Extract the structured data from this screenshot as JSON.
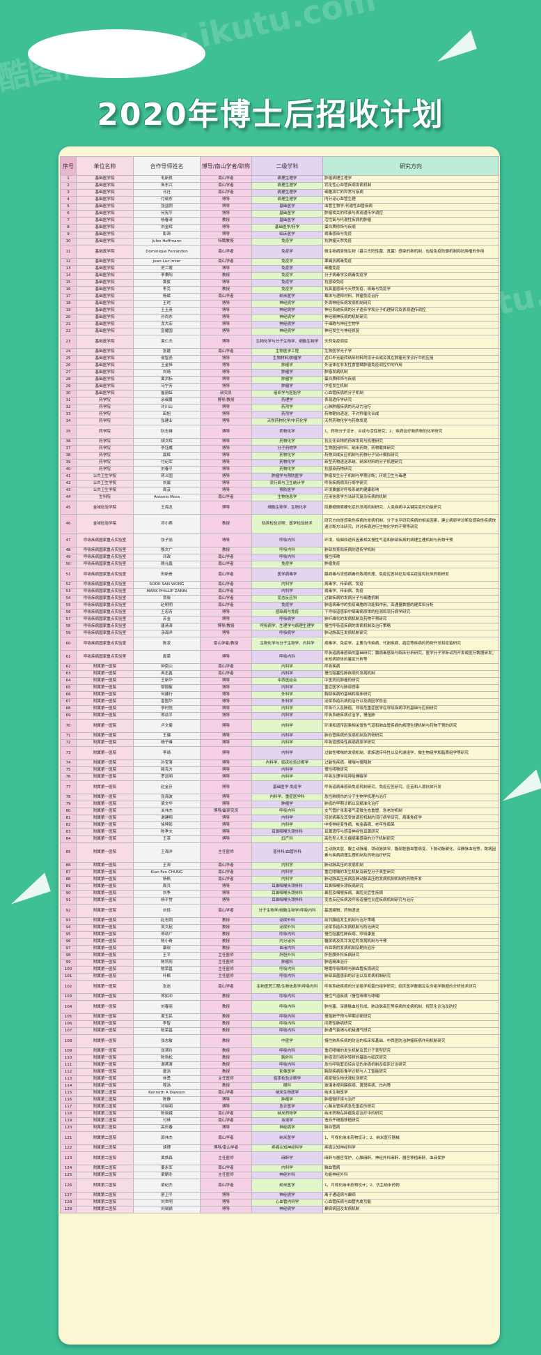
{
  "title": "2020年博士后招收计划",
  "columns": [
    "序号",
    "单位名称",
    "合作导师姓名",
    "博导/南山学者/职称",
    "二级学科",
    "研究方向"
  ],
  "watermark": "酷图网 www.ikutu.com",
  "colors": {
    "background": "#3fbf96",
    "panel": "#fbf7d2",
    "col_index": "#f2c9de",
    "col_unit": "#f9dbe7",
    "col_mentor": "#f3f3f3",
    "col_title": "#f6d1e6",
    "col_discipline": "#e3d4f1",
    "col_discipline_alt": "#e3f6c9",
    "col_direction": "#cef3e2"
  },
  "rows": [
    [
      "1",
      "基础医学院",
      "毛新良",
      "南山学者",
      "病理生理学",
      "肿瘤病理生理学"
    ],
    [
      "2",
      "基础医学院",
      "朱东兴",
      "南山学者",
      "病理生理学",
      "钙化性心血管疾病发病机制"
    ],
    [
      "3",
      "基础医学院",
      "马社",
      "南山学者",
      "病理生理学",
      "细胞凋亡的异常与疾病"
    ],
    [
      "4",
      "基础医学院",
      "付晓东",
      "博导",
      "病理生理学",
      "内分泌心血管生理"
    ],
    [
      "5",
      "基础医学院",
      "张益刚",
      "博导",
      "基础医学",
      "血管生物学;代谢性血管疾病"
    ],
    [
      "6",
      "基础医学院",
      "何宪平",
      "博导",
      "基础医学",
      "肿瘤相关的转录与表观遗传学调控"
    ],
    [
      "7",
      "基础医学院",
      "杨春涛",
      "教授",
      "基础医学",
      "活性氧与代谢性疾病的肿瘤"
    ],
    [
      "8",
      "基础医学院",
      "刘金辉",
      "博导",
      "基础医学/药学",
      "蛋白质修饰与疾病"
    ],
    [
      "9",
      "基础医学院",
      "彭涛",
      "博导",
      "临床医学",
      "病毒感染与免疫"
    ],
    [
      "10",
      "基础医学院",
      "Jules Hoffmann",
      "特聘教授",
      "免疫学",
      "抗肿瘤天然免疫"
    ],
    [
      "11",
      "基础医学院",
      "Dominique Ferrandon",
      "南山学者",
      "免疫学",
      "微生物病原微生物（幕兰氏阳性菌、真菌）感染的新机制，包括免疫防御机制和抗肿瘤的作用"
    ],
    [
      "12",
      "基础医学院",
      "Jean-Luc Imler",
      "南山学者",
      "免疫学",
      "果蝇抗病毒免疫"
    ],
    [
      "13",
      "基础医学院",
      "史二霞",
      "博导",
      "免疫学",
      "细胞免疫"
    ],
    [
      "14",
      "基础医学院",
      "李秉阳",
      "教授",
      "免疫学",
      "分子病毒学及病毒免疫学"
    ],
    [
      "15",
      "基础医学院",
      "黄俊",
      "博导",
      "免疫学",
      "抗感染免疫"
    ],
    [
      "16",
      "基础医学院",
      "李克",
      "教授",
      "免疫学",
      "抗真菌感染与天然免疫、病毒与免疫学"
    ],
    [
      "17",
      "基础医学院",
      "杨斌",
      "南山学者",
      "纳米医学",
      "载体与递释材料、肿瘤免疫治疗"
    ],
    [
      "18",
      "基础医学院",
      "王时",
      "博导",
      "神经病学",
      "外周神经疾病发病机制研究"
    ],
    [
      "19",
      "基础医学院",
      "王玉英",
      "博导",
      "神经病学",
      "神经系统疾病的分子遗传学和分子机理研究及表观遗传调控"
    ],
    [
      "20",
      "基础医学院",
      "孙尚东",
      "博导",
      "神经病学",
      "神经精神疾病的机制研究"
    ],
    [
      "21",
      "基础医学院",
      "龙大宏",
      "博导",
      "神经病学",
      "干细胞与神经生物学"
    ],
    [
      "22",
      "基础医学院",
      "宣耀国",
      "博导",
      "神经病学",
      "神经发生与神经修复"
    ],
    [
      "23",
      "基础医学院",
      "袁仁杰",
      "博导",
      "生物化学与分子生物学、细胞生物学",
      "天然免疫调控"
    ],
    [
      "24",
      "基础医学院",
      "张建",
      "南山学者",
      "生物医学工程",
      "生物医学光子学"
    ],
    [
      "25",
      "基础医学院",
      "侯智尧",
      "博导",
      "生物材料/肿瘤学",
      "近红外光能转纳米材料的设计合成及其在肿瘤光学诊疗中的应用"
    ],
    [
      "26",
      "基础医学院",
      "王金恒",
      "博导",
      "肿瘤学",
      "外泌体在非发性食管鳞肿瘤免疫调控中的作用"
    ],
    [
      "27",
      "基础医学院",
      "刘旸",
      "博导",
      "肿瘤学",
      "肿瘤发病机制"
    ],
    [
      "28",
      "基础医学院",
      "黄洪标",
      "博导",
      "肿瘤学",
      "蛋白质修饰与疾病"
    ],
    [
      "29",
      "基础医学院",
      "马宁芳",
      "博导",
      "肿瘤学",
      "中枢发生机制"
    ],
    [
      "30",
      "基础医学院",
      "崔丽虹",
      "研究员",
      "组织学与胚胎学",
      "心血管疾病的分子机制"
    ],
    [
      "31",
      "药学院",
      "余细勇",
      "博导/教授",
      "药理学",
      "表观遗传学研究"
    ],
    [
      "32",
      "药学院",
      "许川山",
      "博导",
      "药剂学",
      "心肺肿瘤疾病的光动力治疗"
    ],
    [
      "33",
      "药学院",
      "田旭",
      "博导",
      "药剂学",
      "药物靶向递送、不对称催化合成"
    ],
    [
      "34",
      "药学院",
      "张建业",
      "博导",
      "天然药物化学/中药化学",
      "天然药物化学与药物发现"
    ],
    [
      "35",
      "药学院",
      "阮志雄",
      "博导",
      "药物化学",
      "1、药物分子设计、合成与活性研究；2、疾病治疗新药物的化学研究"
    ],
    [
      "36",
      "药学院",
      "胡文辉",
      "博导",
      "药物化学",
      "抗炎化合物的药效发现与机理研究"
    ],
    [
      "37",
      "药学院",
      "李钰威",
      "博导",
      "分子药物学",
      "生物医用材料、纳米药物、药物载体研究"
    ],
    [
      "38",
      "药学院",
      "晨辉",
      "博导",
      "药物化学",
      "药物合成反应机制与药物分子设计模拟研究"
    ],
    [
      "39",
      "药学院",
      "付纪军",
      "博导",
      "药物化学",
      "新型药物递送系统、纳米材料的分子机理研究"
    ],
    [
      "40",
      "药学院",
      "刘春平",
      "博导",
      "药物化学",
      "抗感染药物研究"
    ],
    [
      "41",
      "公共卫生学院",
      "蒋义国",
      "博导",
      "肿瘤学与预防医学",
      "肿瘤发生分子机制与早期诊断；环境卫生与毒理"
    ],
    [
      "42",
      "公共卫生学院",
      "刘晨",
      "博导",
      "流行病与卫生统计学",
      "呼吸疾病病流行病学研究"
    ],
    [
      "43",
      "公共卫生学院",
      "周芸",
      "博导",
      "预防医学",
      "环境暴露对呼吸系统的健康影响"
    ],
    [
      "44",
      "生科院",
      "Antonio Mora",
      "南山学者",
      "生物信息学",
      "应用信息学方法研究复杂疾病的机制"
    ],
    [
      "45",
      "金域检验学院",
      "王海龙",
      "博导",
      "细胞生物学、生物化学",
      "肌萎缩侧索硬化症的发病机制研究，人类疾病中关键突变的功能研究"
    ],
    [
      "46",
      "金域检验学院",
      "邓小燕",
      "教授",
      "临床检验诊断、医学检验技术",
      "研究方向是感染性疾病的发病机制，分子水平研究疾病的相关因素，建立病原学诊断及感染性疾病快速诊断方法研究，并对疾病进行生物化学的干预等研究"
    ],
    [
      "47",
      "呼吸疾病国家重点实验室",
      "张子丽",
      "博导",
      "呼吸内科",
      "环境、吸烟和遗传因素相关慢性气道和肺部疾病的病理生理机制与药物干预"
    ],
    [
      "48",
      "呼吸疾病国家重点实验室",
      "殷文广",
      "教授",
      "呼吸内科",
      "肺部发育和疾病的遗传学机制"
    ],
    [
      "49",
      "呼吸疾病国家重点实验室",
      "邓政",
      "南山学者",
      "呼吸内科",
      "慢性咳嗽"
    ],
    [
      "50",
      "呼吸疾病国家重点实验室",
      "赖允鑫",
      "南山学者",
      "免疫学",
      "肿瘤免疫"
    ],
    [
      "51",
      "呼吸疾病国家重点实验室",
      "田新贵",
      "南山学者",
      "医学病毒学",
      "腺病毒与流感病毒的致病机理、免疫应答特征及相关疫苗和抗体药物研发"
    ],
    [
      "52",
      "呼吸疾病国家重点实验室",
      "SOOK SAN WONG",
      "南山学者",
      "内科学",
      "病毒学、传染病、免疫"
    ],
    [
      "53",
      "呼吸疾病国家重点实验室",
      "MARK PHILLIP ZANIN",
      "南山学者",
      "内科学",
      "病毒学、传染病、免疫"
    ],
    [
      "54",
      "呼吸疾病国家重点实验室",
      "贾晓",
      "南山学者",
      "变态反应科",
      "过敏疾病的发病分子与细胞机制"
    ],
    [
      "55",
      "呼吸疾病国家重点实验室",
      "赵明明",
      "南山学者",
      "免疫学",
      "肺癌病毒中的免疫细胞的功能和作用、高通量数据的建库和分析"
    ],
    [
      "56",
      "呼吸疾病国家重点实验室",
      "王忠芳",
      "博导",
      "感染病与免疫",
      "下呼吸道感染中病毒病原体的检测和流行病学研究"
    ],
    [
      "57",
      "呼吸疾病国家重点实验室",
      "苏金",
      "博导",
      "呼吸病学",
      "肺纤维化的发病机制及药物干预研究"
    ],
    [
      "58",
      "呼吸疾病国家重点实验室",
      "唐清涛",
      "博导/教授",
      "呼吸病学、生理学与病理生理学",
      "慢性呼吸道疾病的发病机制及治疗策略"
    ],
    [
      "59",
      "呼吸疾病国家重点实验室",
      "汤海洋",
      "博导",
      "呼吸病学",
      "肺动脉高压发病机制研究"
    ],
    [
      "60",
      "呼吸疾病国家重点实验室",
      "陈凌",
      "南山学者/教授",
      "生物化学与分子生物学、内科学",
      "病毒学、免疫学。主要为传染病、代谢疾病、癌症等疾病的药物开发和疫苗研究"
    ],
    [
      "61",
      "呼吸疾病国家重点实验室",
      "周荣",
      "博导",
      "呼吸内科",
      "呼吸道病毒感染的基础研究；腺病毒感染与临床分析研究，医学分子学新试剂开发或医疗数据研发；未知病原体的鉴定分析等"
    ],
    [
      "62",
      "附属第一医院",
      "钟南山",
      "南山学者",
      "内科学",
      "呼吸疾病"
    ],
    [
      "63",
      "附属第一医院",
      "冉丕鑫",
      "南山学者",
      "内科学",
      "慢性阻塞性肺疾病的发病机制"
    ],
    [
      "64",
      "附属第一医院",
      "王新华",
      "博导",
      "中西医结合",
      "中医药抗肿瘤的研究"
    ],
    [
      "65",
      "附属第一医院",
      "黎毅敏",
      "博导",
      "内科学",
      "重症医学与肺部感染"
    ],
    [
      "66",
      "附属第一医院",
      "何建行",
      "博导",
      "外科学",
      "胸部疾病的基础和临床研究"
    ],
    [
      "67",
      "附属第一医院",
      "曾国华",
      "博导",
      "外科学",
      "泌尿系结石病的治疗以及病因学防治"
    ],
    [
      "68",
      "附属第一医院",
      "李时悦",
      "博导",
      "内科学",
      "呼吸介入及肺癌、呼吸危重症医学在呼吸疾病中的基础与应用研究"
    ],
    [
      "69",
      "附属第一医院",
      "郑劲平",
      "博导",
      "内科学",
      "呼吸系统疾病诊治学，慢阻肺"
    ],
    [
      "70",
      "附属第一医院",
      "卢文菊",
      "博导",
      "内科学",
      "环境和遗传因素相关慢性气道和肺血管疾病的病理生理机制与药物干预的研究"
    ],
    [
      "71",
      "附属第一医院",
      "王健",
      "博导",
      "内科学",
      "肺血管疾病的发病机制及药物研究"
    ],
    [
      "72",
      "附属第一医院",
      "杨子峰",
      "博导",
      "内科学",
      "呼吸道感染性疾病病原学研究"
    ],
    [
      "73",
      "附属第一医院",
      "李靖",
      "博导",
      "内科学",
      "过敏性哮喘的发病机制、家族遗传特性以及代谢组学、微生物组学和脂质组学等研究"
    ],
    [
      "74",
      "附属第一医院",
      "孙宝清",
      "博导",
      "内科学、临床检验诊断学",
      "过敏性疾病、哮喘与慢阻肺"
    ],
    [
      "75",
      "附属第一医院",
      "赖克方",
      "博导",
      "内科学",
      "慢性咳嗽研究"
    ],
    [
      "76",
      "附属第一医院",
      "罗远明",
      "博导",
      "内科学",
      "呼吸生理学和呼吸睡眠学"
    ],
    [
      "77",
      "附属第一医院",
      "赵金存",
      "博导",
      "基础医学-免疫学",
      "呼吸道病毒感染免疫机制研究、免疫应答研究、疫苗和人源抗体开发"
    ],
    [
      "78",
      "附属第一医院",
      "张海波",
      "博导",
      "内科学、重症医学科",
      "急性肺损伤的分子生物学机理与治疗"
    ],
    [
      "79",
      "附属第一医院",
      "梁文华",
      "博导",
      "肿瘤学",
      "肺癌的早期诊断以及精准化治疗"
    ],
    [
      "80",
      "附属第一医院",
      "关伟杰",
      "博导/副研究员",
      "呼吸内科",
      "支气管扩张患者气道微生态重塑、急老的机制"
    ],
    [
      "81",
      "附属第一医院",
      "谢建翔",
      "博导",
      "内科学",
      "冠状病毒及其受体调控机制的流行病学研究、病毒免疫学"
    ],
    [
      "82",
      "附属第一医院",
      "徐坤彩",
      "博导",
      "内科学",
      "中枢神经变性病、帕金森病、老年性痴呆"
    ],
    [
      "83",
      "附属第一医院",
      "陈孝文",
      "博导",
      "耳鼻咽喉头颈外科",
      "耳聋遗传与感音神经性耳聋研究"
    ],
    [
      "84",
      "附属第一医院",
      "王菲",
      "博导",
      "妇产科",
      "高危型人乳头瘤病毒感染的分子机制研究"
    ],
    [
      "85",
      "附属第一医院",
      "王海洋",
      "主任医师",
      "普外科/血管外科",
      "主动脉夹层、腹主动脉瘤、颈动脉狭窄、腹部脏器血管病变、下肢动脉硬化、深静脉血栓等，致病因素与疾病病理生理机制及药物治疗研究"
    ],
    [
      "86",
      "附属第一医院",
      "王涛",
      "南山学者",
      "内科学",
      "肺动脉高压的发病机制"
    ],
    [
      "87",
      "附属第一医院",
      "Kian Fan CHUNG",
      "南山学者",
      "内科学",
      "重症哮喘的发生机制及新型分子表型研究"
    ],
    [
      "88",
      "附属第一医院",
      "杨帆",
      "南山学者",
      "内科学",
      "肺动脉高压疾病及肺动脉高压的发病机制机制的药物开发"
    ],
    [
      "89",
      "附属第一医院",
      "周兵",
      "博导",
      "耳鼻咽喉头颈外科",
      "耳鼻咽喉头颈疾病研究"
    ],
    [
      "90",
      "附属第一医院",
      "刘争",
      "博导",
      "耳鼻咽喉头颈外科",
      "鼻腔及咽喉疾病、鼻腔炎症性疾病"
    ],
    [
      "91",
      "附属第一医院",
      "杨平常",
      "博导",
      "耳鼻咽喉头颈外科",
      "变态反应疾病及呼吸道慢性炎症疾病机制研究与治疗"
    ],
    [
      "92",
      "附属第一医院",
      "刘佳",
      "南山学者",
      "分子生物学/细胞生物学/呼吸内科",
      "基因编辑；药物递送"
    ],
    [
      "93",
      "附属第一医院",
      "赵志刚",
      "教授",
      "泌尿外科",
      "前列腺癌发生机制与治疗策略"
    ],
    [
      "94",
      "附属第一医院",
      "吴文起",
      "教授",
      "泌尿外科",
      "泌尿系结石发病机制与防治研究"
    ],
    [
      "95",
      "附属第一医院",
      "郑劲广",
      "教授",
      "呼吸内科",
      "慢性阻塞性肺疾病、呼吸康复"
    ],
    [
      "96",
      "附属第一医院",
      "陈小奇",
      "教授",
      "内分泌科",
      "糖尿病及其并发症的发病机制与干预"
    ],
    [
      "97",
      "附属第一医院",
      "康欣",
      "教授",
      "血液内科",
      "白血病的发病机制及靶向治疗"
    ],
    [
      "98",
      "附属第一医院",
      "王平",
      "主任医师",
      "肝胆外科",
      "肝胆胰外科疾病研究"
    ],
    [
      "99",
      "附属第一医院",
      "陈莉莉",
      "主任医师",
      "肿瘤科",
      "肺癌精准治疗"
    ],
    [
      "100",
      "附属第一医院",
      "陈荣昌",
      "主任医师",
      "呼吸内科",
      "睡眠呼吸障碍与肺血管疾病研究"
    ],
    [
      "101",
      "附属第一医院",
      "叶枫",
      "主任医师",
      "呼吸内科",
      "肺部真菌感染的诊治以及发病机制研究"
    ],
    [
      "102",
      "附属第一医院",
      "张岩",
      "南山学者",
      "生物医药工程/生物信息学/呼吸内科",
      "呼吸系统疾病的分泌组学和蛋白组学研究；临床医学数据及生命组学数据的分析技术研究"
    ],
    [
      "103",
      "附属第一医院",
      "郑如冲",
      "教授",
      "呼吸内科",
      "慢性气道疾病（慢性咳嗽与哮喘）"
    ],
    [
      "104",
      "附属第一医院",
      "刘春丽",
      "教授",
      "呼吸内科",
      "肺栓塞、深静脉血栓形成、肺动脉高压等疾病的发病机制、规范化诊治及防控"
    ],
    [
      "105",
      "附属第一医院",
      "周玉民",
      "教授",
      "呼吸内科",
      "慢阻肺干预与早期诊断研究"
    ],
    [
      "106",
      "附属第一医院",
      "李智",
      "教授",
      "呼吸内科",
      "间质性肺病研究"
    ],
    [
      "107",
      "附属第一医院",
      "陈荣昌",
      "教授",
      "呼吸内科",
      "肺通气衰竭与机械通气研究"
    ],
    [
      "108",
      "附属第一医院",
      "张志敏",
      "教授",
      "中医学",
      "慢性肺系疾病的防治的临床和基础、中西医防治肿瘤疾病作用机制研究"
    ],
    [
      "109",
      "附属第一医院",
      "张清玲",
      "教授",
      "呼吸内科",
      "重症哮喘的发生机制及其分子表型研究"
    ],
    [
      "110",
      "附属第一医院",
      "陈勃松",
      "教授",
      "胸外科",
      "肺癌流行病学转移的基础与临床研究"
    ],
    [
      "111",
      "附属第一医院",
      "谢燕清",
      "教授",
      "呼吸内科",
      "急性呼吸窘迫综合征的发病机制及临床诊治研究"
    ],
    [
      "112",
      "附属第一医院",
      "唐浩",
      "教授",
      "影像医学",
      "胸部疾病影像学诊断与人工智能研究"
    ],
    [
      "113",
      "附属第一医院",
      "林勇",
      "主任医师",
      "临床检验诊断学",
      "病原微生物快速检测研究"
    ],
    [
      "114",
      "附属第一医院",
      "程浩",
      "教授",
      "眼科",
      "玻璃体视网膜疾病、黄斑疾病、白内障"
    ],
    [
      "115",
      "附属第二医院",
      "Kenneth A Dawson",
      "南山学者",
      "纳米生物医学",
      "纳米生物医学"
    ],
    [
      "116",
      "附属第二医院",
      "陈静",
      "博导",
      "肿瘤学",
      "肿瘤微环境与治疗"
    ],
    [
      "117",
      "附属第二医院",
      "邓晓明",
      "博导",
      "急诊医学",
      "心脑血管疾病急危重症的研究"
    ],
    [
      "118",
      "附属第二医院",
      "陈晓娥",
      "南山学者",
      "纳米药物学",
      "纳米药物在肿瘤免疫治疗中的研究"
    ],
    [
      "119",
      "附属第二医院",
      "付林",
      "南山学者",
      "血液学",
      "造血干细胞移植研究"
    ],
    [
      "120",
      "附属第二医院",
      "高庆春",
      "博导",
      "神经病学",
      "脑血管病"
    ],
    [
      "121",
      "附属第二医院",
      "郭伟杰",
      "南山学者",
      "纳米医学",
      "1、可视化纳米药物设计；2、纳米医疗器械"
    ],
    [
      "122",
      "附属第二医院",
      "胡理",
      "博导/南山学者",
      "疼痛认知神经科学",
      "疼痛认知神经科学"
    ],
    [
      "123",
      "附属第二医院",
      "黄焕森",
      "主任医师",
      "麻醉学",
      "麻醉与器官保护、心脑麻醉、神经外科麻醉、器官移植麻醉、血液保护"
    ],
    [
      "124",
      "附属第二医院",
      "姜永军",
      "南山学者",
      "内科学",
      "脑血管病"
    ],
    [
      "125",
      "附属第二医院",
      "梁朝冬",
      "主任医师",
      "神经外科",
      "功能神经外科"
    ],
    [
      "126",
      "附属第二医院",
      "梁纪杰",
      "南山学者",
      "纳米医学",
      "1、可视化纳米药物设计；2、仿生纳米药物"
    ],
    [
      "127",
      "附属第二医院",
      "廖卫平",
      "博导",
      "神经病学",
      "离子通道病与癫痫"
    ],
    [
      "128",
      "附属第二医院",
      "刘世明",
      "博导",
      "心血管内科学",
      "心血管疾病与血管内皮功能"
    ],
    [
      "129",
      "附属第二医院",
      "刘晓颖",
      "博导",
      "神经病学",
      "癫痫病因及发病机制"
    ]
  ]
}
